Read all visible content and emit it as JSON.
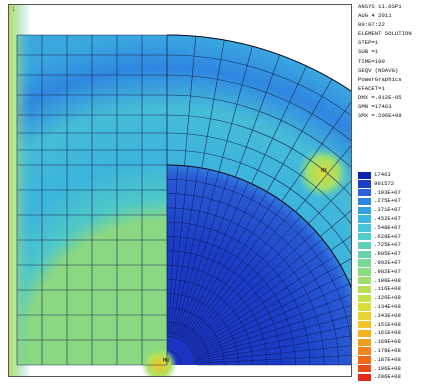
{
  "plot": {
    "corner_mark": "1",
    "node_mx": "MX",
    "node_mn": "MN"
  },
  "info": {
    "lines": [
      "ANSYS 11.0SP1",
      "AUG  4 2011",
      "00:07:22",
      "ELEMENT SOLUTION",
      "STEP=1",
      "SUB =1",
      "TIME=100",
      "SEQV      (NOAVG)",
      "PowerGraphics",
      "EFACET=1",
      "DMX =.912E-05",
      "SMN =17463",
      "SMX =.206E+08"
    ]
  },
  "legend": {
    "entries": [
      {
        "label": "17463",
        "color": "#1020b0"
      },
      {
        "label": "901572",
        "color": "#1a3fc8"
      },
      {
        "label": ".193E+07",
        "color": "#2a62da"
      },
      {
        "label": ".275E+07",
        "color": "#2f86e0"
      },
      {
        "label": ".371E+07",
        "color": "#33a2e2"
      },
      {
        "label": ".452E+07",
        "color": "#3cb8e0"
      },
      {
        "label": ".548E+07",
        "color": "#46c4d8"
      },
      {
        "label": ".628E+07",
        "color": "#52cccc"
      },
      {
        "label": ".725E+07",
        "color": "#5ed0bc"
      },
      {
        "label": ".805E+07",
        "color": "#6ad4a8"
      },
      {
        "label": ".902E+07",
        "color": "#78d896"
      },
      {
        "label": ".982E+07",
        "color": "#8cdc82"
      },
      {
        "label": ".108E+08",
        "color": "#a0de6e"
      },
      {
        "label": ".116E+08",
        "color": "#b4e05a"
      },
      {
        "label": ".126E+08",
        "color": "#c8e048"
      },
      {
        "label": ".134E+08",
        "color": "#dadc3a"
      },
      {
        "label": ".143E+08",
        "color": "#e8d430"
      },
      {
        "label": ".151E+08",
        "color": "#f0c628"
      },
      {
        "label": ".161E+08",
        "color": "#f4b422"
      },
      {
        "label": ".169E+08",
        "color": "#f49e1e"
      },
      {
        "label": ".179E+08",
        "color": "#f2861a"
      },
      {
        "label": ".187E+08",
        "color": "#ee6a18"
      },
      {
        "label": ".196E+08",
        "color": "#e84c18"
      },
      {
        "label": ".206E+08",
        "color": "#e02a1a"
      }
    ]
  }
}
